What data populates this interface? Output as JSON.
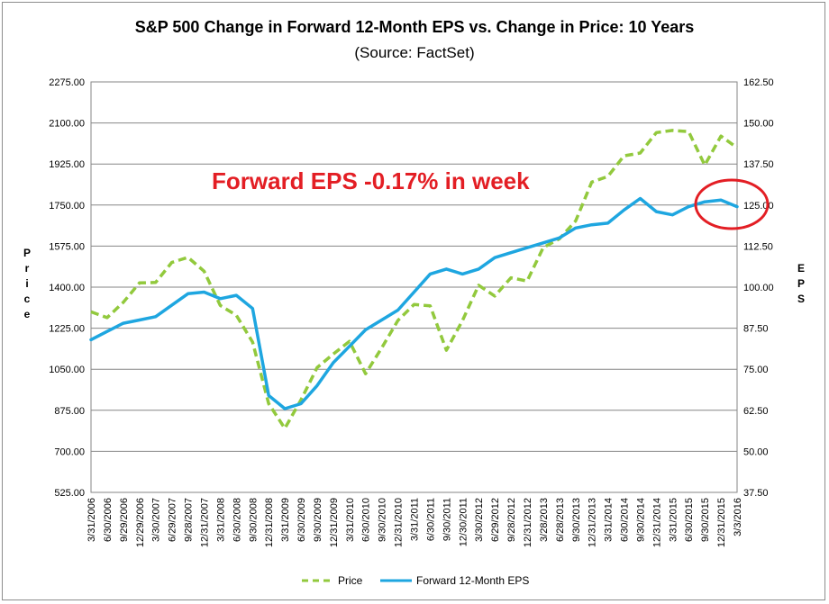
{
  "chart_data": {
    "type": "line",
    "title": "S&P 500 Change in Forward 12-Month EPS vs. Change in Price: 10 Years",
    "subtitle": "(Source: FactSet)",
    "ylabel_left": "Price",
    "ylabel_right": "EPS",
    "ylim_left": [
      525,
      2275
    ],
    "ylim_right": [
      37.5,
      162.5
    ],
    "yticks_left": [
      "525.00",
      "700.00",
      "875.00",
      "1050.00",
      "1225.00",
      "1400.00",
      "1575.00",
      "1750.00",
      "1925.00",
      "2100.00",
      "2275.00"
    ],
    "yticks_right": [
      "37.50",
      "50.00",
      "62.50",
      "75.00",
      "87.50",
      "100.00",
      "112.50",
      "125.00",
      "137.50",
      "150.00",
      "162.50"
    ],
    "x_categories": [
      "3/31/2006",
      "6/30/2006",
      "9/29/2006",
      "12/29/2006",
      "3/30/2007",
      "6/29/2007",
      "9/28/2007",
      "12/31/2007",
      "3/31/2008",
      "6/30/2008",
      "9/30/2008",
      "12/31/2008",
      "3/31/2009",
      "6/30/2009",
      "9/30/2009",
      "12/31/2009",
      "3/31/2010",
      "6/30/2010",
      "9/30/2010",
      "12/31/2010",
      "3/31/2011",
      "6/30/2011",
      "9/30/2011",
      "12/30/2011",
      "3/30/2012",
      "6/29/2012",
      "9/28/2012",
      "12/31/2012",
      "3/28/2013",
      "6/28/2013",
      "9/30/2013",
      "12/31/2013",
      "3/31/2014",
      "6/30/2014",
      "9/30/2014",
      "12/31/2014",
      "3/31/2015",
      "6/30/2015",
      "9/30/2015",
      "12/31/2015",
      "3/3/2016"
    ],
    "grid": true,
    "legend_position": "bottom",
    "annotation": "Forward EPS -0.17% in week",
    "series": [
      {
        "name": "Price",
        "axis": "left",
        "color": "#92c93d",
        "style": "dashed",
        "values": [
          1295,
          1270,
          1335,
          1418,
          1420,
          1505,
          1527,
          1468,
          1322,
          1280,
          1166,
          903,
          798,
          919,
          1057,
          1115,
          1169,
          1031,
          1141,
          1258,
          1326,
          1320,
          1131,
          1258,
          1408,
          1362,
          1440,
          1426,
          1569,
          1606,
          1682,
          1848,
          1872,
          1960,
          1972,
          2059,
          2068,
          2063,
          1920,
          2044,
          1994
        ]
      },
      {
        "name": "Forward 12-Month EPS",
        "axis": "right",
        "color": "#1ea6e0",
        "style": "solid",
        "values": [
          84.0,
          86.5,
          89.0,
          90.0,
          91.0,
          94.5,
          98.0,
          98.5,
          96.5,
          97.5,
          93.5,
          67.0,
          63.0,
          64.5,
          70.0,
          77.0,
          82.0,
          87.0,
          90.0,
          93.0,
          98.5,
          104.0,
          105.5,
          104.0,
          105.5,
          109.0,
          110.5,
          112.0,
          113.5,
          115.0,
          118.0,
          119.0,
          119.5,
          123.5,
          127.0,
          123.0,
          122.0,
          124.5,
          126.0,
          126.5,
          124.5
        ]
      }
    ]
  }
}
